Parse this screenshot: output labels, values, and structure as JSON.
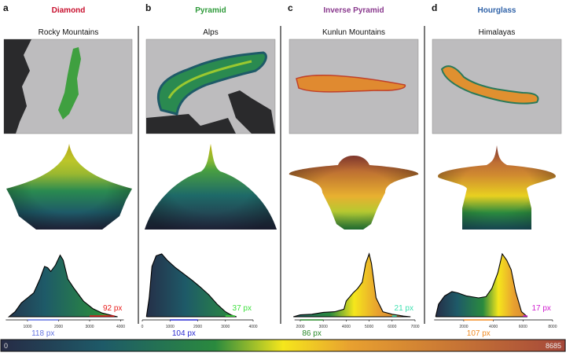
{
  "panels": [
    {
      "letter": "a",
      "shape": "Diamond",
      "shape_color": "#c8102e",
      "range": "Rocky Mountains"
    },
    {
      "letter": "b",
      "shape": "Pyramid",
      "shape_color": "#2e9a3a",
      "range": "Alps"
    },
    {
      "letter": "c",
      "shape": "Inverse Pyramid",
      "shape_color": "#8a3a8e",
      "range": "Kunlun Mountains"
    },
    {
      "letter": "d",
      "shape": "Hourglass",
      "shape_color": "#2f62a8",
      "range": "Himalayas"
    }
  ],
  "colorbar": {
    "min_label": "0",
    "max_label": "8685",
    "min": 0,
    "max": 8685,
    "colors": [
      "#262b45",
      "#1e5a68",
      "#2a8a3e",
      "#f5e61c",
      "#e8a030",
      "#a5483a"
    ]
  },
  "chart_data": [
    {
      "type": "area",
      "xlim": [
        300,
        4100
      ],
      "ticks": [
        "1000",
        "2000",
        "3000",
        "4000"
      ],
      "tick_values": [
        1000,
        2000,
        3000,
        4000
      ],
      "points": [
        [
          400,
          0
        ],
        [
          600,
          0.08
        ],
        [
          800,
          0.22
        ],
        [
          1000,
          0.3
        ],
        [
          1200,
          0.38
        ],
        [
          1400,
          0.6
        ],
        [
          1550,
          0.8
        ],
        [
          1650,
          0.78
        ],
        [
          1750,
          0.72
        ],
        [
          1900,
          0.82
        ],
        [
          2050,
          0.98
        ],
        [
          2150,
          0.9
        ],
        [
          2300,
          0.6
        ],
        [
          2500,
          0.45
        ],
        [
          2800,
          0.25
        ],
        [
          3100,
          0.13
        ],
        [
          3400,
          0.06
        ],
        [
          3800,
          0.01
        ],
        [
          3900,
          0
        ]
      ],
      "annotations": [
        {
          "label": "118 px",
          "from": 1000,
          "to": 2000,
          "color": "#6474e0",
          "pos": "below"
        },
        {
          "label": "92 px",
          "from": 3000,
          "to": 3800,
          "color": "#e8201e",
          "pos": "above"
        }
      ]
    },
    {
      "type": "area",
      "xlim": [
        0,
        4000
      ],
      "ticks": [
        "0",
        "1000",
        "2000",
        "3000",
        "4000"
      ],
      "tick_values": [
        0,
        1000,
        2000,
        3000,
        4000
      ],
      "points": [
        [
          150,
          0
        ],
        [
          250,
          0.3
        ],
        [
          350,
          0.8
        ],
        [
          500,
          0.97
        ],
        [
          700,
          1.0
        ],
        [
          900,
          0.9
        ],
        [
          1200,
          0.78
        ],
        [
          1500,
          0.68
        ],
        [
          1800,
          0.58
        ],
        [
          2100,
          0.47
        ],
        [
          2400,
          0.35
        ],
        [
          2700,
          0.2
        ],
        [
          3000,
          0.08
        ],
        [
          3200,
          0.03
        ],
        [
          3400,
          0
        ]
      ],
      "annotations": [
        {
          "label": "104 px",
          "from": 1000,
          "to": 2000,
          "color": "#2a2ad0",
          "pos": "below"
        },
        {
          "label": "37 px",
          "from": 3000,
          "to": 3350,
          "color": "#3ee03e",
          "pos": "above"
        }
      ]
    },
    {
      "type": "area",
      "xlim": [
        1750,
        7000
      ],
      "ticks": [
        "2000",
        "3000",
        "4000",
        "5000",
        "6000",
        "7000"
      ],
      "tick_values": [
        2000,
        3000,
        4000,
        5000,
        6000,
        7000
      ],
      "points": [
        [
          1700,
          0
        ],
        [
          2000,
          0.03
        ],
        [
          2500,
          0.04
        ],
        [
          3000,
          0.07
        ],
        [
          3500,
          0.08
        ],
        [
          3900,
          0.12
        ],
        [
          4000,
          0.25
        ],
        [
          4300,
          0.38
        ],
        [
          4500,
          0.45
        ],
        [
          4700,
          0.55
        ],
        [
          4850,
          0.85
        ],
        [
          5000,
          1.0
        ],
        [
          5100,
          0.85
        ],
        [
          5300,
          0.3
        ],
        [
          5600,
          0.08
        ],
        [
          6000,
          0.04
        ],
        [
          6500,
          0.01
        ],
        [
          6800,
          0
        ]
      ],
      "annotations": [
        {
          "label": "86 px",
          "from": 2000,
          "to": 3000,
          "color": "#2a8a2a",
          "pos": "below"
        },
        {
          "label": "21 px",
          "from": 6000,
          "to": 6200,
          "color": "#3ee0b0",
          "pos": "above"
        }
      ]
    },
    {
      "type": "area",
      "xlim": [
        0,
        8000
      ],
      "ticks": [
        "2000",
        "4000",
        "6000",
        "8000"
      ],
      "tick_values": [
        2000,
        4000,
        6000,
        8000
      ],
      "points": [
        [
          100,
          0
        ],
        [
          150,
          0.05
        ],
        [
          300,
          0.2
        ],
        [
          700,
          0.33
        ],
        [
          1200,
          0.4
        ],
        [
          1600,
          0.38
        ],
        [
          2200,
          0.33
        ],
        [
          3000,
          0.3
        ],
        [
          3500,
          0.32
        ],
        [
          3900,
          0.45
        ],
        [
          4300,
          0.7
        ],
        [
          4600,
          1.0
        ],
        [
          4900,
          0.9
        ],
        [
          5200,
          0.75
        ],
        [
          5500,
          0.4
        ],
        [
          5900,
          0.08
        ],
        [
          6300,
          0
        ]
      ],
      "annotations": [
        {
          "label": "107 px",
          "from": 2000,
          "to": 4000,
          "color": "#f08a20",
          "pos": "below"
        },
        {
          "label": "17 px",
          "from": 6000,
          "to": 6300,
          "color": "#d020d0",
          "pos": "above"
        }
      ]
    }
  ]
}
